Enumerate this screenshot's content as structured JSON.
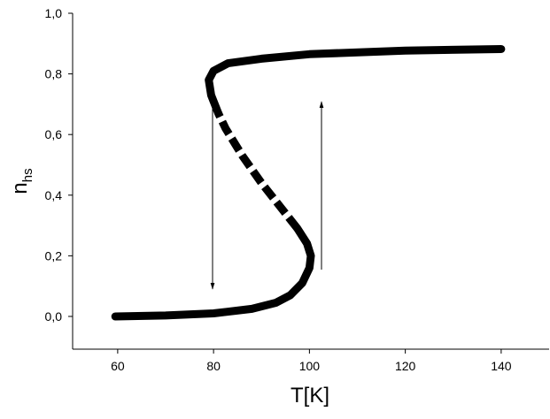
{
  "chart_data": {
    "type": "line",
    "xlabel": "T[K]",
    "ylabel": "n",
    "ylabel_subscript": "hs",
    "xlim": [
      50.6,
      150
    ],
    "ylim": [
      -0.108,
      1.0
    ],
    "xticks": [
      60,
      80,
      100,
      120,
      140
    ],
    "yticks": [
      {
        "value": 0,
        "label": "0,0"
      },
      {
        "value": 0.2,
        "label": "0,2"
      },
      {
        "value": 0.4,
        "label": "0,4"
      },
      {
        "value": 0.6,
        "label": "0,6"
      },
      {
        "value": 0.8,
        "label": "0,8"
      },
      {
        "value": 1.0,
        "label": "1,0"
      }
    ],
    "series": [
      {
        "color": "#000000",
        "dashed": false,
        "x": [
          59.5,
          70,
          80,
          88,
          93,
          96,
          98.5,
          100,
          100.3,
          99.5,
          97.5
        ],
        "values": [
          0,
          0.003,
          0.01,
          0.025,
          0.045,
          0.07,
          0.11,
          0.16,
          0.2,
          0.24,
          0.29
        ]
      },
      {
        "color": "#000000",
        "dashed": true,
        "x": [
          97.5,
          94,
          90,
          86,
          82.5,
          81
        ],
        "values": [
          0.29,
          0.36,
          0.44,
          0.53,
          0.62,
          0.67
        ]
      },
      {
        "color": "#000000",
        "dashed": false,
        "x": [
          81,
          79.5,
          79,
          80,
          83,
          90,
          100,
          120,
          140
        ],
        "values": [
          0.67,
          0.73,
          0.78,
          0.81,
          0.835,
          0.85,
          0.865,
          0.877,
          0.882
        ]
      }
    ]
  }
}
